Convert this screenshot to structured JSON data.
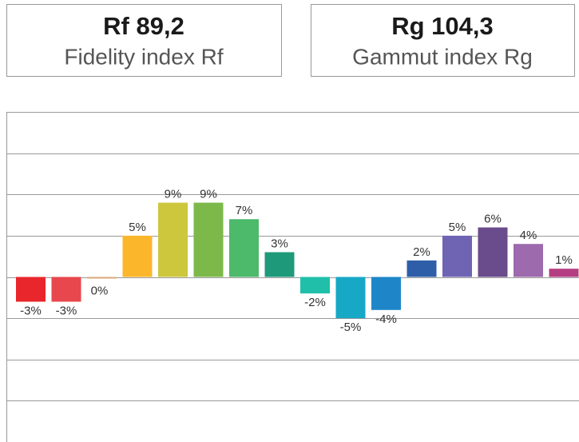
{
  "panels": [
    {
      "title": "Rf 89,2",
      "subtitle": "Fidelity index Rf"
    },
    {
      "title": "Rg 104,3",
      "subtitle": "Gammut index Rg"
    }
  ],
  "chart_data": {
    "type": "bar",
    "categories": [
      null,
      null,
      null,
      null,
      null,
      null,
      null,
      null,
      null,
      null,
      null,
      null,
      null,
      null,
      null,
      null
    ],
    "values": [
      -3,
      -3,
      0,
      5,
      9,
      9,
      7,
      3,
      -2,
      -5,
      -4,
      2,
      5,
      6,
      4,
      1
    ],
    "value_labels": [
      "-3%",
      "-3%",
      "0%",
      "5%",
      "9%",
      "9%",
      "7%",
      "3%",
      "-2%",
      "-5%",
      "-4%",
      "2%",
      "5%",
      "6%",
      "4%",
      "1%"
    ],
    "colors": [
      "#e8262c",
      "#e8474d",
      "#d9a97a",
      "#fbb62b",
      "#cdc73e",
      "#7cb94a",
      "#4cb96b",
      "#1e9a7b",
      "#1fbfaa",
      "#17a8c6",
      "#1e86c8",
      "#2e5ea8",
      "#6f64b3",
      "#6a4b8b",
      "#9c6aad",
      "#b53e82"
    ],
    "ylim": [
      -20,
      20
    ],
    "yticks": [
      -15,
      -10,
      -5,
      0,
      5,
      10,
      15
    ],
    "grid": true
  }
}
